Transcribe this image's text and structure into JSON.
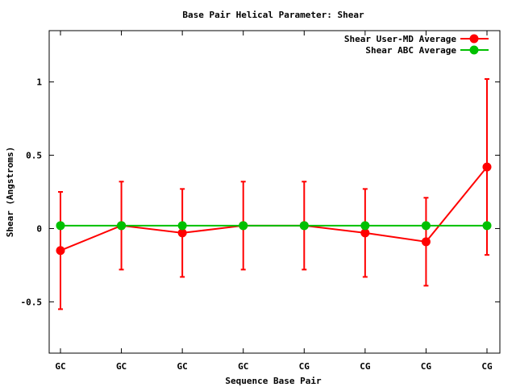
{
  "chart_data": {
    "type": "line",
    "title": "Base Pair Helical Parameter: Shear",
    "xlabel": "Sequence Base Pair",
    "ylabel": "Shear (Angstroms)",
    "categories": [
      "GC",
      "GC",
      "GC",
      "GC",
      "CG",
      "CG",
      "CG",
      "CG"
    ],
    "ylim": [
      -0.85,
      1.35
    ],
    "yticks": [
      -0.5,
      0,
      0.5,
      1
    ],
    "ytick_labels": [
      "-0.5",
      "0",
      "0.5",
      "1"
    ],
    "grid": false,
    "legend_position": "top-right",
    "series": [
      {
        "name": "Shear User-MD Average",
        "color": "#ff0000",
        "values": [
          -0.15,
          0.02,
          -0.03,
          0.02,
          0.02,
          -0.03,
          -0.09,
          0.42
        ],
        "error": [
          0.4,
          0.3,
          0.3,
          0.3,
          0.3,
          0.3,
          0.3,
          0.6
        ]
      },
      {
        "name": "Shear ABC Average",
        "color": "#00c000",
        "values": [
          0.02,
          0.02,
          0.02,
          0.02,
          0.02,
          0.02,
          0.02,
          0.02
        ]
      }
    ]
  }
}
